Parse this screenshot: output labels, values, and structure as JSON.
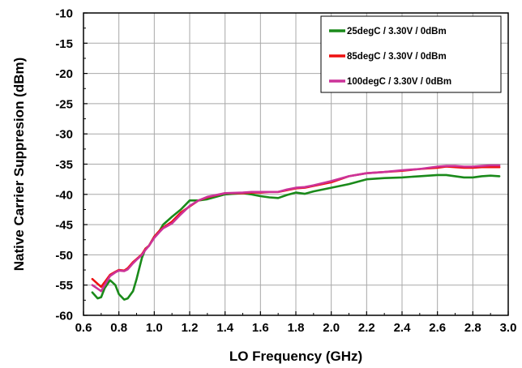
{
  "chart_data": {
    "type": "line",
    "xlabel": "LO Frequency (GHz)",
    "ylabel": "Native Carrier Suppresion (dBm)",
    "xlim": [
      0.6,
      3.0
    ],
    "ylim": [
      -60,
      -10
    ],
    "xticks": [
      "0.6",
      "0.8",
      "1.0",
      "1.2",
      "1.4",
      "1.6",
      "1.8",
      "2.0",
      "2.2",
      "2.4",
      "2.6",
      "2.8",
      "3.0"
    ],
    "yticks": [
      "-10",
      "-15",
      "-20",
      "-25",
      "-30",
      "-35",
      "-40",
      "-45",
      "-50",
      "-55",
      "-60"
    ],
    "grid": true,
    "legend_position": "top-right",
    "series": [
      {
        "name": "25degC /  3.30V /  0dBm",
        "color": "#1a8a1a",
        "x": [
          0.65,
          0.68,
          0.7,
          0.72,
          0.75,
          0.78,
          0.8,
          0.83,
          0.85,
          0.88,
          0.9,
          0.93,
          0.95,
          0.97,
          1.0,
          1.03,
          1.05,
          1.1,
          1.15,
          1.2,
          1.25,
          1.3,
          1.4,
          1.5,
          1.55,
          1.6,
          1.65,
          1.7,
          1.75,
          1.8,
          1.85,
          1.9,
          2.0,
          2.1,
          2.2,
          2.3,
          2.4,
          2.5,
          2.6,
          2.65,
          2.7,
          2.75,
          2.8,
          2.85,
          2.9,
          2.95
        ],
        "y": [
          -56.2,
          -57.2,
          -57.0,
          -55.5,
          -54.2,
          -55.0,
          -56.5,
          -57.4,
          -57.2,
          -56.0,
          -54.0,
          -50.5,
          -49.0,
          -48.5,
          -47.0,
          -46.0,
          -45.0,
          -43.7,
          -42.5,
          -41.0,
          -41.0,
          -40.8,
          -40.0,
          -39.8,
          -40.0,
          -40.3,
          -40.5,
          -40.6,
          -40.1,
          -39.7,
          -39.9,
          -39.5,
          -38.9,
          -38.3,
          -37.5,
          -37.3,
          -37.2,
          -37.0,
          -36.8,
          -36.8,
          -37.0,
          -37.2,
          -37.2,
          -37.0,
          -36.9,
          -37.0
        ]
      },
      {
        "name": "85degC /  3.30V /  0dBm",
        "color": "#ee1111",
        "x": [
          0.65,
          0.68,
          0.7,
          0.72,
          0.75,
          0.78,
          0.8,
          0.83,
          0.85,
          0.88,
          0.9,
          0.93,
          0.95,
          0.97,
          1.0,
          1.03,
          1.05,
          1.1,
          1.15,
          1.2,
          1.25,
          1.3,
          1.4,
          1.5,
          1.55,
          1.6,
          1.65,
          1.7,
          1.75,
          1.8,
          1.85,
          1.9,
          2.0,
          2.1,
          2.2,
          2.3,
          2.4,
          2.5,
          2.6,
          2.65,
          2.7,
          2.75,
          2.8,
          2.85,
          2.9,
          2.95
        ],
        "y": [
          -54.0,
          -54.8,
          -55.3,
          -54.5,
          -53.3,
          -52.8,
          -52.5,
          -52.6,
          -52.2,
          -51.2,
          -50.7,
          -49.9,
          -49.0,
          -48.5,
          -47.0,
          -46.0,
          -45.5,
          -44.5,
          -43.0,
          -42.0,
          -41.0,
          -40.5,
          -39.8,
          -39.8,
          -39.7,
          -39.7,
          -39.6,
          -39.6,
          -39.3,
          -39.0,
          -38.9,
          -38.6,
          -38.0,
          -37.0,
          -36.5,
          -36.3,
          -36.1,
          -35.8,
          -35.6,
          -35.4,
          -35.5,
          -35.6,
          -35.6,
          -35.5,
          -35.5,
          -35.5
        ]
      },
      {
        "name": "100degC /  3.30V /  0dBm",
        "color": "#cc3399",
        "x": [
          0.65,
          0.68,
          0.7,
          0.72,
          0.75,
          0.78,
          0.8,
          0.83,
          0.85,
          0.88,
          0.9,
          0.93,
          0.95,
          0.97,
          1.0,
          1.03,
          1.05,
          1.1,
          1.15,
          1.2,
          1.25,
          1.3,
          1.4,
          1.5,
          1.55,
          1.6,
          1.65,
          1.7,
          1.75,
          1.8,
          1.85,
          1.9,
          2.0,
          2.1,
          2.2,
          2.3,
          2.4,
          2.5,
          2.6,
          2.65,
          2.7,
          2.75,
          2.8,
          2.85,
          2.9,
          2.95
        ],
        "y": [
          -55.0,
          -55.6,
          -56.0,
          -55.0,
          -53.5,
          -52.9,
          -52.6,
          -52.7,
          -52.4,
          -51.4,
          -50.8,
          -50.0,
          -49.2,
          -48.5,
          -47.2,
          -46.2,
          -45.6,
          -44.8,
          -43.3,
          -41.9,
          -41.0,
          -40.4,
          -39.8,
          -39.7,
          -39.6,
          -39.6,
          -39.6,
          -39.6,
          -39.2,
          -38.9,
          -38.8,
          -38.5,
          -37.8,
          -37.0,
          -36.5,
          -36.3,
          -36.0,
          -35.8,
          -35.4,
          -35.3,
          -35.3,
          -35.4,
          -35.4,
          -35.3,
          -35.2,
          -35.2
        ]
      }
    ]
  }
}
